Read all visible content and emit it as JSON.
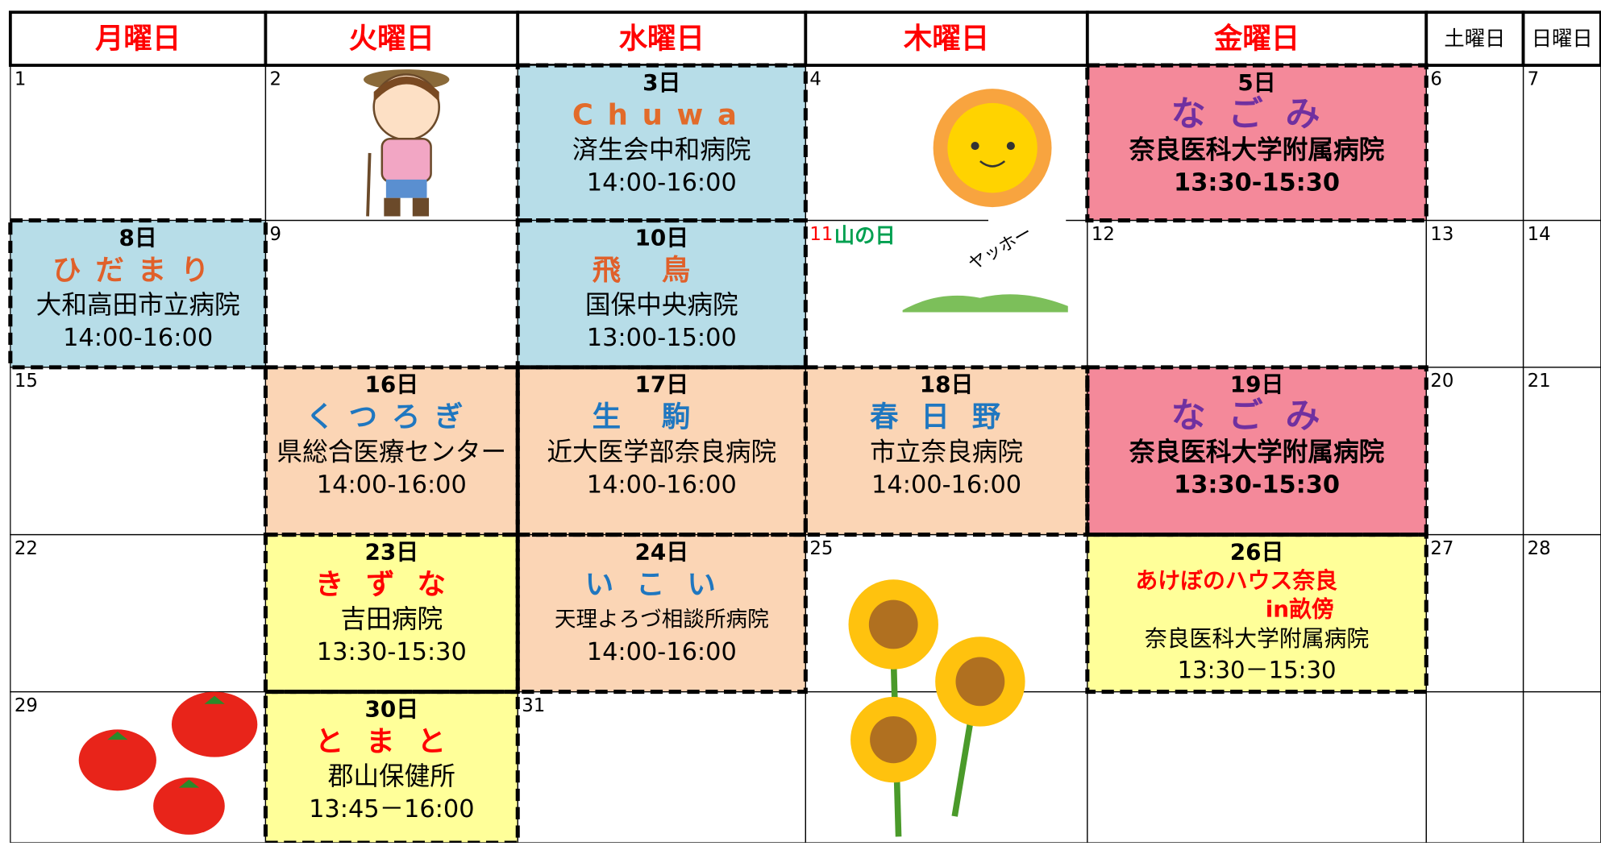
{
  "header": [
    "月曜日",
    "火曜日",
    "水曜日",
    "木曜日",
    "金曜日",
    "土曜日",
    "日曜日"
  ],
  "weeks": [
    [
      {
        "day": "1"
      },
      {
        "day": "2"
      },
      {
        "day": "3日",
        "name": "Chuwa",
        "hospital": "済生会中和病院",
        "time": "14:00-16:00",
        "bg": "#b7dde8",
        "color": "#e26b2a"
      },
      {
        "day": "4"
      },
      {
        "day": "5日",
        "name": "なごみ",
        "hospital": "奈良医科大学附属病院",
        "time": "13:30-15:30",
        "bg": "#f4899a",
        "color": "#7030a0"
      },
      {
        "day": "6"
      },
      {
        "day": "7"
      }
    ],
    [
      {
        "day": "8日",
        "name": "ひだまり",
        "hospital": "大和高田市立病院",
        "time": "14:00-16:00",
        "bg": "#b7dde8",
        "color": "#e0602a"
      },
      {
        "day": "9"
      },
      {
        "day": "10日",
        "name": "飛鳥",
        "hospital": "国保中央病院",
        "time": "13:00-15:00",
        "bg": "#b7dde8",
        "color": "#e0602a"
      },
      {
        "day": "11",
        "holiday": "山の日",
        "note": "ヤッホー"
      },
      {
        "day": "12"
      },
      {
        "day": "13"
      },
      {
        "day": "14"
      }
    ],
    [
      {
        "day": "15"
      },
      {
        "day": "16日",
        "name": "くつろぎ",
        "hospital": "県総合医療センター",
        "time": "14:00-16:00",
        "bg": "#fbd5b5",
        "color": "#1f77c0"
      },
      {
        "day": "17日",
        "name": "生駒",
        "hospital": "近大医学部奈良病院",
        "time": "14:00-16:00",
        "bg": "#fbd5b5",
        "color": "#1f77c0"
      },
      {
        "day": "18日",
        "name": "春日野",
        "hospital": "市立奈良病院",
        "time": "14:00-16:00",
        "bg": "#fbd5b5",
        "color": "#1f77c0"
      },
      {
        "day": "19日",
        "name": "なごみ",
        "hospital": "奈良医科大学附属病院",
        "time": "13:30-15:30",
        "bg": "#f4899a",
        "color": "#7030a0"
      },
      {
        "day": "20"
      },
      {
        "day": "21"
      }
    ],
    [
      {
        "day": "22"
      },
      {
        "day": "23日",
        "name": "きずな",
        "hospital": "吉田病院",
        "time": "13:30-15:30",
        "bg": "#ffff99",
        "color": "#ff0000"
      },
      {
        "day": "24日",
        "name": "いこい",
        "hospital": "天理よろづ相談所病院",
        "time": "14:00-16:00",
        "bg": "#fbd5b5",
        "color": "#1f77c0"
      },
      {
        "day": "25"
      },
      {
        "day": "26日",
        "name": "あけぼのハウス奈良",
        "name2": "in畝傍",
        "hospital": "奈良医科大学附属病院",
        "time": "13:30－15:30",
        "bg": "#ffff99",
        "color": "#ff0000"
      },
      {
        "day": "27"
      },
      {
        "day": "28"
      }
    ],
    [
      {
        "day": "29"
      },
      {
        "day": "30日",
        "name": "とまと",
        "hospital": "郡山保健所",
        "time": "13:45－16:00",
        "bg": "#ffff99",
        "color": "#ff0000"
      },
      {
        "day": "31"
      }
    ]
  ]
}
